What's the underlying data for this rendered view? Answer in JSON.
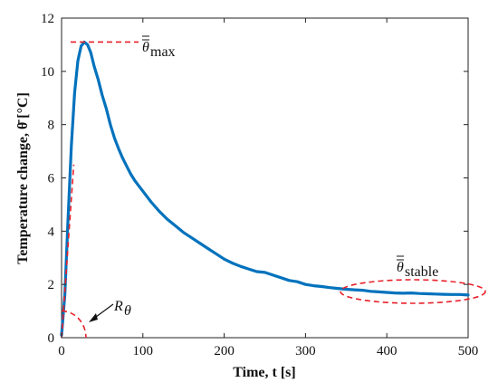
{
  "chart_data": {
    "type": "line",
    "xlabel": "Time, t [s]",
    "ylabel": "Temperature change, θ̄̄ [°C]",
    "xlim": [
      0,
      500
    ],
    "ylim": [
      0,
      12
    ],
    "xticks": [
      0,
      100,
      200,
      300,
      400,
      500
    ],
    "yticks": [
      0,
      2,
      4,
      6,
      8,
      10,
      12
    ],
    "grid": false,
    "series": [
      {
        "color": "#0072BD",
        "x": [
          0,
          4,
          8,
          12,
          16,
          20,
          24,
          28,
          32,
          36,
          40,
          45,
          50,
          55,
          60,
          65,
          70,
          75,
          80,
          85,
          90,
          95,
          100,
          110,
          120,
          130,
          140,
          150,
          160,
          170,
          180,
          190,
          200,
          210,
          220,
          230,
          240,
          250,
          260,
          270,
          280,
          290,
          300,
          310,
          320,
          330,
          340,
          350,
          360,
          370,
          380,
          390,
          400,
          410,
          420,
          430,
          440,
          450,
          460,
          470,
          480,
          490,
          500
        ],
        "y": [
          0.1,
          1.6,
          4.5,
          7.2,
          9.2,
          10.4,
          10.95,
          11.1,
          11.0,
          10.7,
          10.2,
          9.7,
          9.1,
          8.6,
          8.0,
          7.5,
          7.1,
          6.75,
          6.45,
          6.15,
          5.9,
          5.7,
          5.5,
          5.1,
          4.75,
          4.45,
          4.2,
          3.95,
          3.75,
          3.55,
          3.35,
          3.15,
          2.95,
          2.8,
          2.68,
          2.58,
          2.48,
          2.45,
          2.35,
          2.25,
          2.15,
          2.1,
          2.0,
          1.95,
          1.92,
          1.88,
          1.85,
          1.82,
          1.8,
          1.78,
          1.74,
          1.72,
          1.7,
          1.68,
          1.67,
          1.68,
          1.66,
          1.65,
          1.64,
          1.63,
          1.62,
          1.62,
          1.6
        ]
      }
    ],
    "annotations": {
      "max_label": "θ̄̄max",
      "max_value": 11.1,
      "stable_label": "θ̄̄stable",
      "r_label": "Rθ"
    }
  }
}
